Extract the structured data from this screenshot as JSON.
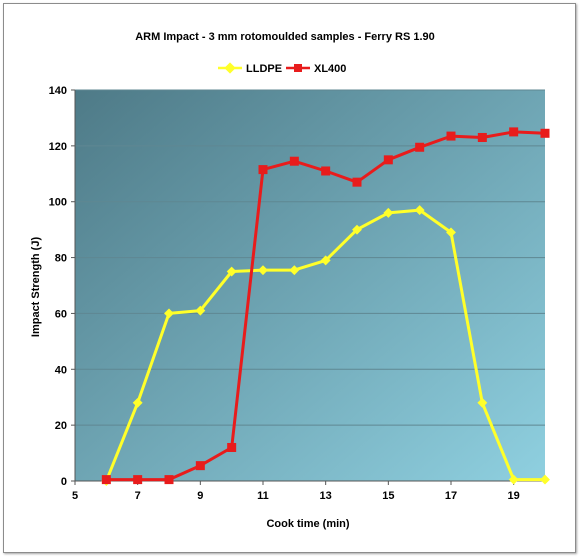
{
  "chart_data": {
    "type": "line",
    "title": "ARM Impact - 3 mm rotomoulded samples - Ferry RS 1.90",
    "xlabel": "Cook time (min)",
    "ylabel": "Impact Strength (J)",
    "xlim": [
      5,
      20
    ],
    "ylim": [
      0,
      140
    ],
    "x_ticks": [
      5,
      7,
      9,
      11,
      13,
      15,
      17,
      19
    ],
    "y_ticks": [
      0,
      20,
      40,
      60,
      80,
      100,
      120,
      140
    ],
    "grid": "horizontal",
    "legend_position": "top-center",
    "background_gradient": [
      "#4e7a87",
      "#8fd0e0"
    ],
    "series": [
      {
        "name": "LLDPE",
        "color": "#ffff2a",
        "marker": "diamond",
        "x": [
          6,
          7,
          8,
          9,
          10,
          11,
          12,
          13,
          14,
          15,
          16,
          17,
          18,
          19,
          20
        ],
        "y": [
          0,
          28,
          60,
          61,
          75,
          75.5,
          75.5,
          79,
          90,
          96,
          97,
          89,
          28,
          0.5,
          0.5
        ]
      },
      {
        "name": "XL400",
        "color": "#e81c1c",
        "marker": "square",
        "x": [
          6,
          7,
          8,
          9,
          10,
          11,
          12,
          13,
          14,
          15,
          16,
          17,
          18,
          19,
          20
        ],
        "y": [
          0.5,
          0.5,
          0.5,
          5.5,
          12,
          111.5,
          114.5,
          111,
          107,
          115,
          119.5,
          123.5,
          123,
          125,
          124.5
        ]
      }
    ]
  }
}
